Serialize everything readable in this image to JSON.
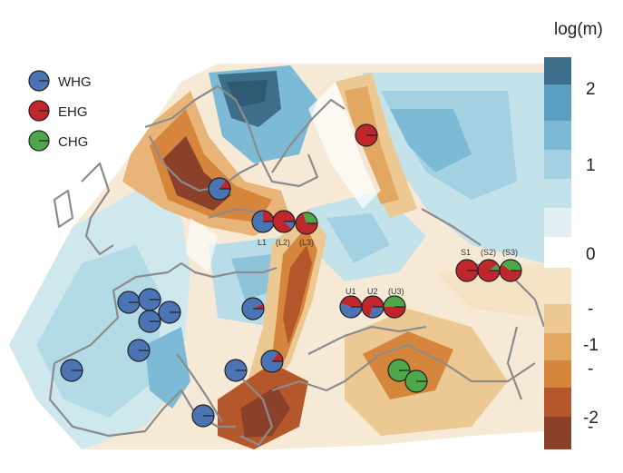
{
  "legend": {
    "items": [
      {
        "label": "WHG",
        "color": "#4a74b4"
      },
      {
        "label": "EHG",
        "color": "#c0272d"
      },
      {
        "label": "CHG",
        "color": "#4ea84a"
      }
    ]
  },
  "colorbar": {
    "title": "log(m)",
    "tick_labels": [
      "2",
      "1",
      "0",
      "-",
      "-1",
      "-",
      "-2",
      "-"
    ],
    "colors": [
      "#3d6f8a",
      "#5a9ec0",
      "#7dbad6",
      "#a4d1e2",
      "#c4e2ea",
      "#e0f0f3",
      "#ffffff",
      "#f5e3c6",
      "#ecc892",
      "#e2a862",
      "#d6863c",
      "#b4582b",
      "#8a4029"
    ]
  },
  "site_labels": {
    "L1": "L1",
    "L2": "(L2)",
    "L3": "(L3)",
    "U1": "U1",
    "U2": "U2",
    "U3": "(U3)",
    "S1": "S1",
    "S2": "(S2)",
    "S3": "(S3)"
  },
  "samples": [
    {
      "id": "ireland-west",
      "composition": {
        "WHG": 1.0,
        "EHG": 0.0,
        "CHG": 0.0
      }
    },
    {
      "id": "iberia-north",
      "composition": {
        "WHG": 1.0,
        "EHG": 0.0,
        "CHG": 0.0
      }
    },
    {
      "id": "france-1",
      "composition": {
        "WHG": 1.0,
        "EHG": 0.0,
        "CHG": 0.0
      }
    },
    {
      "id": "france-2",
      "composition": {
        "WHG": 1.0,
        "EHG": 0.0,
        "CHG": 0.0
      }
    },
    {
      "id": "france-3",
      "composition": {
        "WHG": 1.0,
        "EHG": 0.0,
        "CHG": 0.0
      }
    },
    {
      "id": "france-4",
      "composition": {
        "WHG": 1.0,
        "EHG": 0.0,
        "CHG": 0.0
      }
    },
    {
      "id": "france-south",
      "composition": {
        "WHG": 1.0,
        "EHG": 0.0,
        "CHG": 0.0
      }
    },
    {
      "id": "italy",
      "composition": {
        "WHG": 1.0,
        "EHG": 0.0,
        "CHG": 0.0
      }
    },
    {
      "id": "sicily",
      "composition": {
        "WHG": 1.0,
        "EHG": 0.0,
        "CHG": 0.0
      }
    },
    {
      "id": "sweden",
      "composition": {
        "WHG": 0.85,
        "EHG": 0.15,
        "CHG": 0.0
      }
    },
    {
      "id": "hungary",
      "composition": {
        "WHG": 0.93,
        "EHG": 0.07,
        "CHG": 0.0
      }
    },
    {
      "id": "balkans",
      "composition": {
        "WHG": 0.85,
        "EHG": 0.15,
        "CHG": 0.0
      }
    },
    {
      "id": "L1",
      "composition": {
        "WHG": 0.75,
        "EHG": 0.25,
        "CHG": 0.0
      }
    },
    {
      "id": "L2",
      "composition": {
        "WHG": 0.12,
        "EHG": 0.88,
        "CHG": 0.0
      }
    },
    {
      "id": "L3",
      "composition": {
        "WHG": 0.0,
        "EHG": 0.7,
        "CHG": 0.3
      }
    },
    {
      "id": "karelia",
      "composition": {
        "WHG": 0.0,
        "EHG": 1.0,
        "CHG": 0.0
      }
    },
    {
      "id": "U1",
      "composition": {
        "WHG": 0.55,
        "EHG": 0.45,
        "CHG": 0.0
      }
    },
    {
      "id": "U2",
      "composition": {
        "WHG": 0.3,
        "EHG": 0.7,
        "CHG": 0.0
      }
    },
    {
      "id": "U3",
      "composition": {
        "WHG": 0.0,
        "EHG": 0.5,
        "CHG": 0.5
      }
    },
    {
      "id": "S1",
      "composition": {
        "WHG": 0.0,
        "EHG": 1.0,
        "CHG": 0.0
      }
    },
    {
      "id": "S2",
      "composition": {
        "WHG": 0.0,
        "EHG": 0.9,
        "CHG": 0.1
      }
    },
    {
      "id": "S3",
      "composition": {
        "WHG": 0.0,
        "EHG": 0.6,
        "CHG": 0.4
      }
    },
    {
      "id": "caucasus-1",
      "composition": {
        "WHG": 0.0,
        "EHG": 0.0,
        "CHG": 1.0
      }
    },
    {
      "id": "caucasus-2",
      "composition": {
        "WHG": 0.0,
        "EHG": 0.0,
        "CHG": 1.0
      }
    }
  ]
}
